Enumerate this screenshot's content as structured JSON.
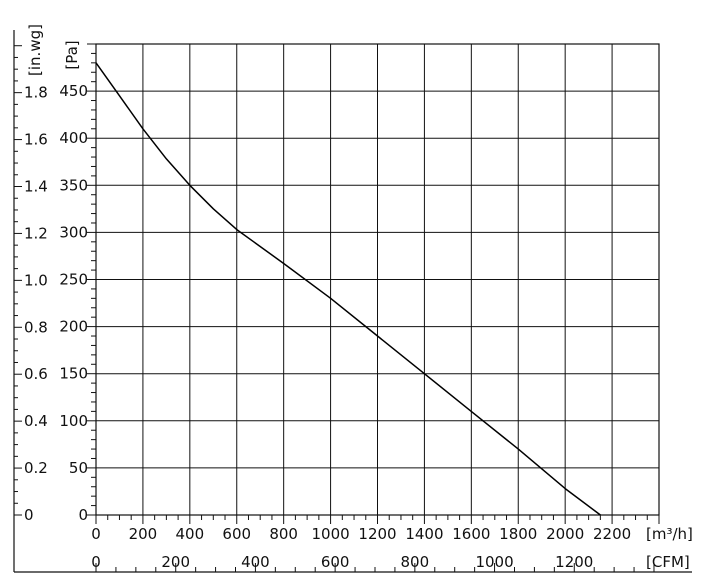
{
  "chart_data": {
    "type": "line",
    "title": "",
    "x_primary": {
      "unit_label": "[m³/h]",
      "ticks": [
        0,
        200,
        400,
        600,
        800,
        1000,
        1200,
        1400,
        1600,
        1800,
        2000,
        2200
      ],
      "range": [
        0,
        2400
      ]
    },
    "x_secondary": {
      "unit_label": "[CFM]",
      "ticks": [
        0,
        200,
        400,
        600,
        800,
        1000,
        1200
      ]
    },
    "y_primary": {
      "unit_label": "[Pa]",
      "ticks": [
        0,
        50,
        100,
        150,
        200,
        250,
        300,
        350,
        400,
        450
      ],
      "range": [
        0,
        500
      ]
    },
    "y_secondary": {
      "unit_label": "[in.wg]",
      "ticks": [
        "0",
        "0.2",
        "0.4",
        "0.6",
        "0.8",
        "1.0",
        "1.2",
        "1.4",
        "1.6",
        "1.8"
      ],
      "values": [
        0,
        0.2,
        0.4,
        0.6,
        0.8,
        1.0,
        1.2,
        1.4,
        1.6,
        1.8
      ]
    },
    "grid": true,
    "series": [
      {
        "x": [
          0,
          100,
          200,
          300,
          400,
          500,
          600,
          800,
          1000,
          1200,
          1400,
          1600,
          1800,
          2000,
          2150
        ],
        "y": [
          480,
          445,
          410,
          378,
          350,
          325,
          303,
          267,
          230,
          190,
          150,
          110,
          70,
          28,
          0
        ]
      }
    ]
  }
}
